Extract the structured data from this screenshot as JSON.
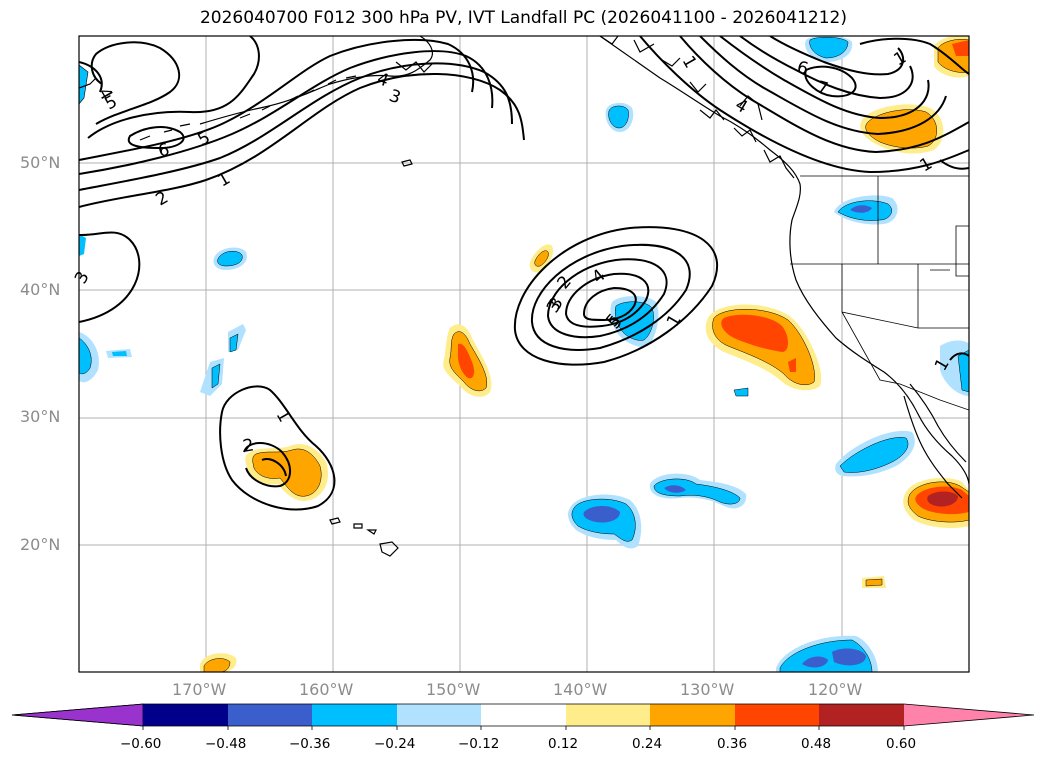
{
  "title": "2026040700 F012 300 hPa PV, IVT Landfall PC (2026041100 - 2026041212)",
  "lat_labels": [
    "50°N",
    "40°N",
    "30°N",
    "20°N"
  ],
  "lon_labels": [
    "170°W",
    "160°W",
    "150°W",
    "140°W",
    "130°W",
    "120°W"
  ],
  "colorbar": {
    "ticks": [
      "−0.60",
      "−0.48",
      "−0.36",
      "−0.24",
      "−0.12",
      "0.12",
      "0.24",
      "0.36",
      "0.48",
      "0.60"
    ],
    "colors": [
      "#9a32cd",
      "#00008b",
      "#3a5fcd",
      "#00bfff",
      "#b0e2ff",
      "#ffffff",
      "#ffec8b",
      "#ffa500",
      "#ff4500",
      "#b22222",
      "#ff82ab"
    ]
  },
  "contour_labels": [
    "4",
    "5",
    "6",
    "5",
    "2",
    "1",
    "4",
    "3",
    "3",
    "3",
    "5",
    "4",
    "6",
    "7",
    "1",
    "1",
    "2",
    "3",
    "4",
    "5",
    "1",
    "1",
    "2",
    "1",
    "1"
  ]
}
